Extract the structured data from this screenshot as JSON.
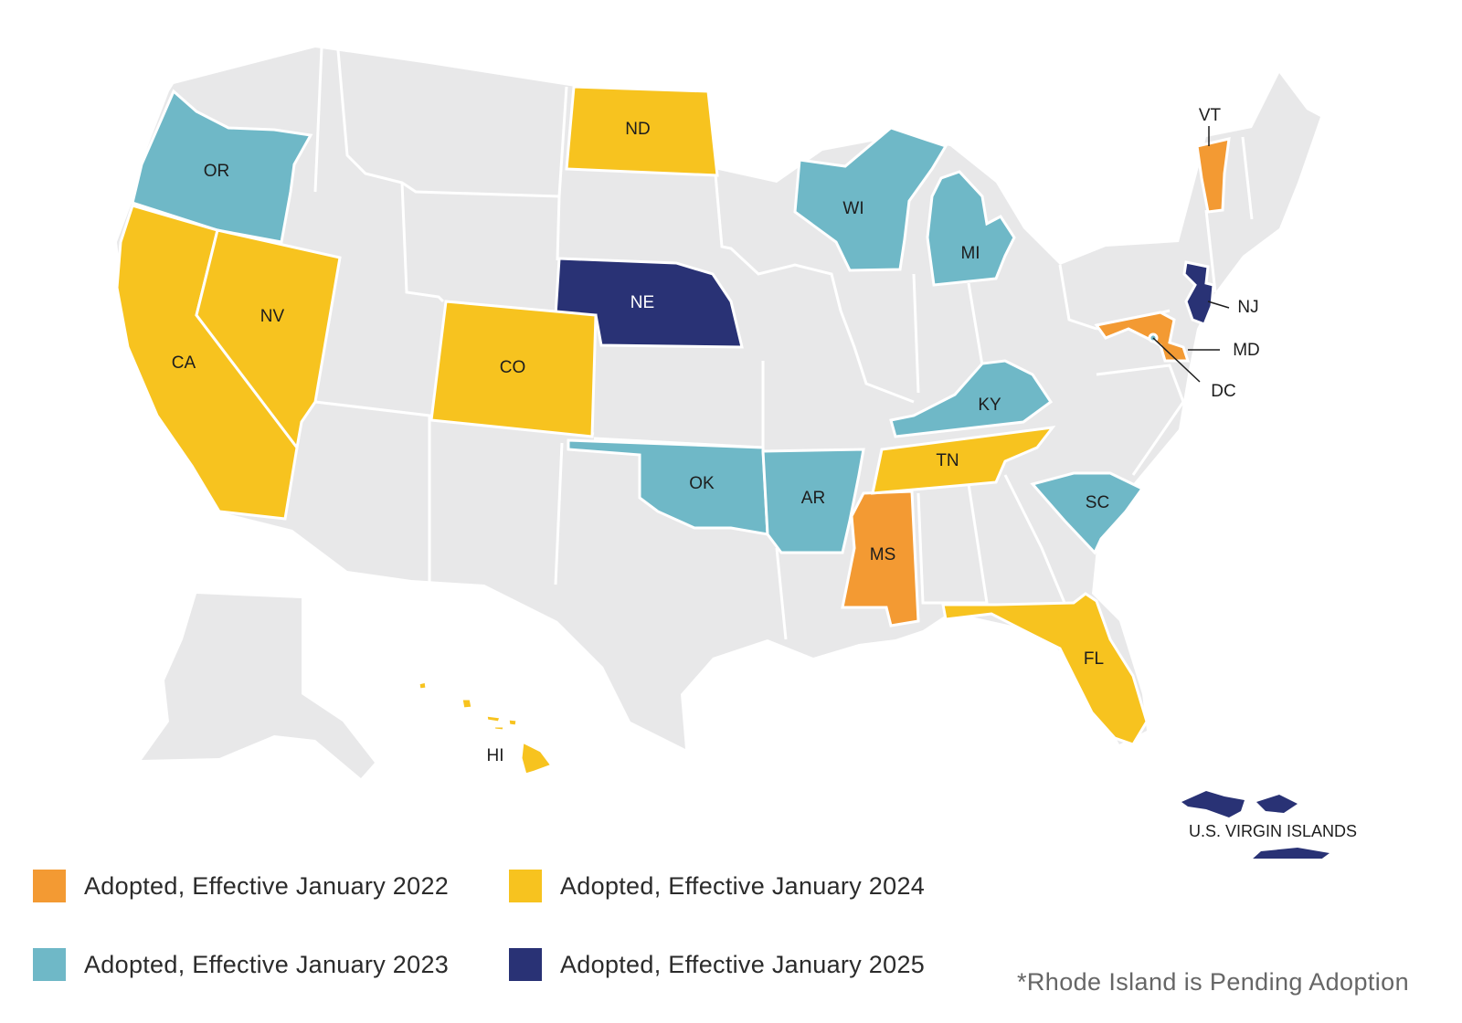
{
  "colors": {
    "land": "#e8e8e9",
    "border": "#ffffff",
    "cat_2022": "#f39a33",
    "cat_2023": "#6fb8c7",
    "cat_2024": "#f7c31f",
    "cat_2025": "#293275",
    "label_light": "#ffffff",
    "label_dark": "#1d1d1d"
  },
  "legend": [
    {
      "label": "Adopted, Effective January 2022",
      "category": "cat_2022"
    },
    {
      "label": "Adopted, Effective January 2024",
      "category": "cat_2024"
    },
    {
      "label": "Adopted, Effective January 2023",
      "category": "cat_2023"
    },
    {
      "label": "Adopted, Effective January 2025",
      "category": "cat_2025"
    }
  ],
  "footnote": "*Rhode Island is Pending Adoption",
  "territory_label": "U.S. VIRGIN ISLANDS",
  "states": [
    {
      "code": "OR",
      "category": "cat_2023"
    },
    {
      "code": "CA",
      "category": "cat_2024"
    },
    {
      "code": "NV",
      "category": "cat_2024"
    },
    {
      "code": "ND",
      "category": "cat_2024"
    },
    {
      "code": "NE",
      "category": "cat_2025"
    },
    {
      "code": "CO",
      "category": "cat_2024"
    },
    {
      "code": "OK",
      "category": "cat_2023"
    },
    {
      "code": "AR",
      "category": "cat_2023"
    },
    {
      "code": "MS",
      "category": "cat_2022"
    },
    {
      "code": "TN",
      "category": "cat_2024"
    },
    {
      "code": "KY",
      "category": "cat_2023"
    },
    {
      "code": "WI",
      "category": "cat_2023"
    },
    {
      "code": "MI",
      "category": "cat_2023"
    },
    {
      "code": "SC",
      "category": "cat_2023"
    },
    {
      "code": "FL",
      "category": "cat_2024"
    },
    {
      "code": "VT",
      "category": "cat_2022"
    },
    {
      "code": "NJ",
      "category": "cat_2025"
    },
    {
      "code": "MD",
      "category": "cat_2022"
    },
    {
      "code": "DC",
      "category": "cat_2023"
    },
    {
      "code": "HI",
      "category": "cat_2024"
    }
  ]
}
